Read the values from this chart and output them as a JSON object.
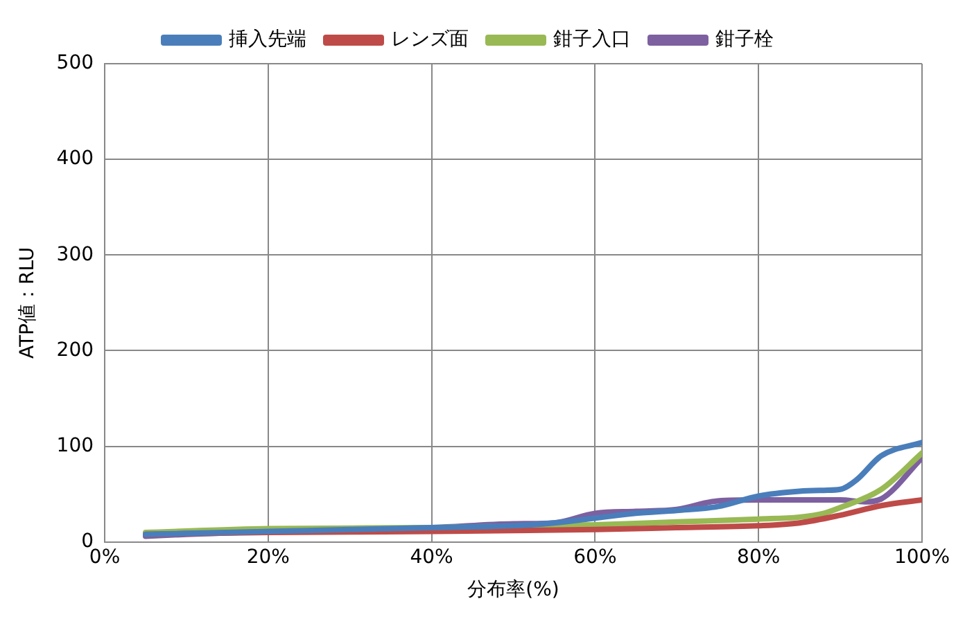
{
  "chart_data": {
    "type": "line",
    "xlabel": "分布率(%)",
    "ylabel": "ATP値：RLU",
    "xlim": [
      0,
      100
    ],
    "xticks": [
      {
        "value": 0,
        "label": "0%"
      },
      {
        "value": 20,
        "label": "20%"
      },
      {
        "value": 40,
        "label": "40%"
      },
      {
        "value": 60,
        "label": "60%"
      },
      {
        "value": 80,
        "label": "80%"
      },
      {
        "value": 100,
        "label": "100%"
      }
    ],
    "ylim": [
      0,
      500
    ],
    "yticks": [
      0,
      100,
      200,
      300,
      400,
      500
    ],
    "grid": true,
    "legend": "top",
    "marker": "none",
    "line_style": "solid",
    "series": [
      {
        "name": "挿入先端",
        "color": "#4a7ebb",
        "x": [
          5,
          10,
          20,
          30,
          40,
          50,
          55,
          60,
          65,
          70,
          75,
          80,
          85,
          88,
          90,
          92,
          95,
          100
        ],
        "values": [
          8,
          9,
          11,
          13,
          15,
          17,
          20,
          25,
          30,
          33,
          37,
          48,
          53,
          54,
          55,
          65,
          90,
          104
        ]
      },
      {
        "name": "レンズ面",
        "color": "#be4b48",
        "x": [
          5,
          20,
          40,
          60,
          70,
          80,
          85,
          90,
          95,
          100
        ],
        "values": [
          8,
          10,
          11,
          13,
          15,
          17,
          20,
          28,
          38,
          44
        ]
      },
      {
        "name": "鉗子入口",
        "color": "#98b954",
        "x": [
          5,
          20,
          40,
          60,
          70,
          80,
          85,
          88,
          90,
          95,
          100
        ],
        "values": [
          10,
          14,
          15,
          18,
          21,
          24,
          26,
          30,
          36,
          55,
          93
        ]
      },
      {
        "name": "鉗子栓",
        "color": "#7d60a0",
        "x": [
          5,
          10,
          20,
          30,
          40,
          50,
          55,
          60,
          65,
          70,
          75,
          80,
          85,
          90,
          93,
          95,
          100
        ],
        "values": [
          6,
          8,
          11,
          13,
          15,
          19,
          20,
          30,
          32,
          34,
          43,
          44,
          44,
          44,
          42,
          45,
          88
        ]
      }
    ]
  }
}
